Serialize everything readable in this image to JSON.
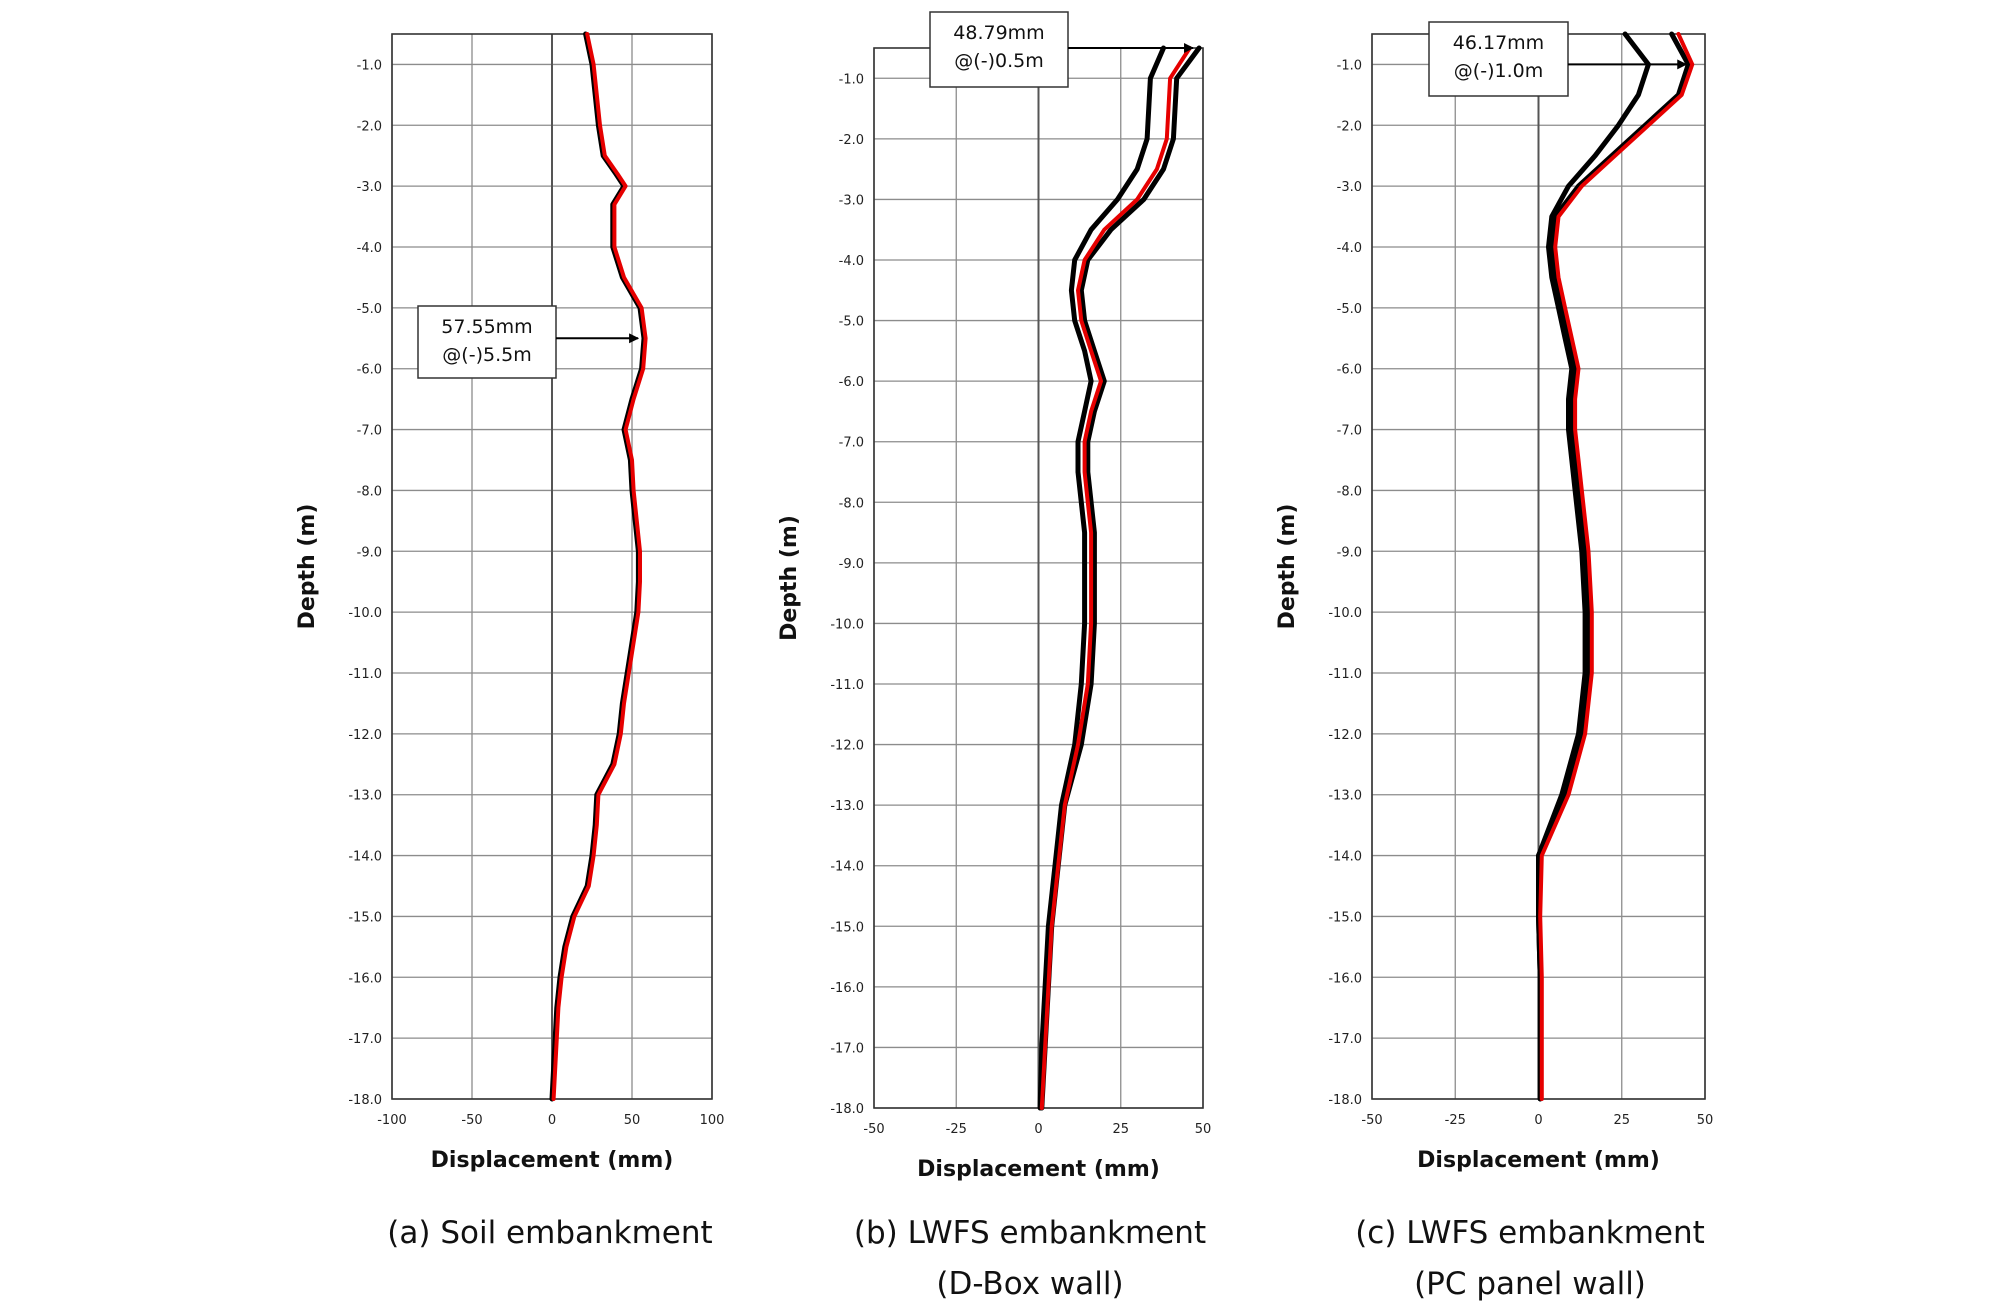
{
  "chart_data": [
    {
      "type": "line",
      "panel": "a",
      "caption": "(a) Soil embankment",
      "xlabel": "Displacement (mm)",
      "ylabel": "Depth (m)",
      "xlim": [
        -100,
        100
      ],
      "ylim": [
        -18.0,
        -0.5
      ],
      "xticks": [
        "-100",
        "-50",
        "0",
        "50",
        "100"
      ],
      "yticks": [
        "-1.0",
        "-2.0",
        "-3.0",
        "-4.0",
        "-5.0",
        "-6.0",
        "-7.0",
        "-8.0",
        "-9.0",
        "-10.0",
        "-11.0",
        "-12.0",
        "-13.0",
        "-14.0",
        "-15.0",
        "-16.0",
        "-17.0",
        "-18.0"
      ],
      "grid": true,
      "annotation": {
        "line1": "57.55mm",
        "line2": "@(-)5.5m",
        "x": 57.55,
        "depth": -5.5
      },
      "series": [
        {
          "color": "#000000",
          "depth": [
            -0.5,
            -1.0,
            -2.0,
            -2.5,
            -2.8,
            -3.0,
            -3.3,
            -4.0,
            -4.5,
            -5.0,
            -5.5,
            -6.0,
            -6.5,
            -7.0,
            -7.5,
            -8.0,
            -8.5,
            -9.0,
            -9.5,
            -10.0,
            -10.5,
            -11.0,
            -11.5,
            -12.0,
            -12.5,
            -13.0,
            -13.5,
            -14.0,
            -14.5,
            -15.0,
            -15.5,
            -16.0,
            -16.5,
            -17.0,
            -17.5,
            -18.0
          ],
          "x": [
            21,
            25,
            29,
            32,
            40,
            45,
            38,
            38,
            44,
            55,
            57.5,
            56,
            50,
            45,
            49,
            50,
            52,
            54,
            54,
            53,
            50,
            47,
            44,
            42,
            38,
            28,
            27,
            25,
            22,
            13,
            8,
            5,
            3,
            2,
            1,
            0
          ]
        },
        {
          "color": "#e60000",
          "depth": [
            -0.5,
            -1.0,
            -2.0,
            -2.5,
            -2.8,
            -3.0,
            -3.3,
            -4.0,
            -4.5,
            -5.0,
            -5.5,
            -6.0,
            -6.5,
            -7.0,
            -7.5,
            -8.0,
            -8.5,
            -9.0,
            -9.5,
            -10.0,
            -10.5,
            -11.0,
            -11.5,
            -12.0,
            -12.5,
            -13.0,
            -13.5,
            -14.0,
            -14.5,
            -15.0,
            -15.5,
            -16.0,
            -16.5,
            -17.0,
            -17.5,
            -18.0
          ],
          "x": [
            22,
            26,
            30,
            33,
            41,
            46,
            39,
            39,
            45,
            56,
            58.5,
            57,
            51,
            46,
            50,
            51,
            53,
            55,
            55,
            54,
            51,
            48,
            45,
            43,
            39,
            29,
            28,
            26,
            23,
            14,
            9,
            6,
            4,
            3,
            2,
            1
          ]
        }
      ]
    },
    {
      "type": "line",
      "panel": "b",
      "caption": "(b) LWFS embankment",
      "caption2": "(D-Box wall)",
      "xlabel": "Displacement (mm)",
      "ylabel": "Depth (m)",
      "xlim": [
        -50,
        50
      ],
      "ylim": [
        -18.0,
        -0.5
      ],
      "xticks": [
        "-50",
        "-25",
        "0",
        "25",
        "50"
      ],
      "yticks": [
        "-1.0",
        "-2.0",
        "-3.0",
        "-4.0",
        "-5.0",
        "-6.0",
        "-7.0",
        "-8.0",
        "-9.0",
        "-10.0",
        "-11.0",
        "-12.0",
        "-13.0",
        "-14.0",
        "-15.0",
        "-16.0",
        "-17.0",
        "-18.0"
      ],
      "grid": true,
      "annotation": {
        "line1": "48.79mm",
        "line2": "@(-)0.5m",
        "x": 48.79,
        "depth": -0.5
      },
      "series": [
        {
          "color": "#000000",
          "depth": [
            -0.5,
            -1.0,
            -2.0,
            -2.5,
            -3.0,
            -3.5,
            -4.0,
            -4.5,
            -5.0,
            -5.5,
            -6.0,
            -6.5,
            -7.0,
            -7.5,
            -8.0,
            -8.5,
            -9.0,
            -9.5,
            -10.0,
            -11.0,
            -12.0,
            -13.0,
            -14.0,
            -15.0,
            -16.0,
            -17.0,
            -18.0
          ],
          "x": [
            48.8,
            42,
            41,
            38,
            32,
            22,
            15,
            13,
            14,
            17,
            20,
            17,
            15,
            15,
            16,
            17,
            17,
            17,
            17,
            16,
            13,
            8,
            6,
            4,
            3,
            2,
            1
          ]
        },
        {
          "color": "#000000",
          "depth": [
            -0.5,
            -1.0,
            -2.0,
            -2.5,
            -3.0,
            -3.5,
            -4.0,
            -4.5,
            -5.0,
            -5.5,
            -6.0,
            -6.5,
            -7.0,
            -7.5,
            -8.0,
            -8.5,
            -9.0,
            -9.5,
            -10.0,
            -11.0,
            -12.0,
            -13.0,
            -14.0,
            -15.0,
            -16.0,
            -17.0,
            -18.0
          ],
          "x": [
            38,
            34,
            33,
            30,
            24,
            16,
            11,
            10,
            11,
            14,
            16,
            14,
            12,
            12,
            13,
            14,
            14,
            14,
            14,
            13,
            11,
            7,
            5,
            3,
            2,
            1,
            0.5
          ]
        },
        {
          "color": "#e60000",
          "depth": [
            -0.5,
            -1.0,
            -2.0,
            -2.5,
            -3.0,
            -3.5,
            -4.0,
            -4.5,
            -5.0,
            -5.5,
            -6.0,
            -6.5,
            -7.0,
            -7.5,
            -8.0,
            -8.5,
            -9.0,
            -9.5,
            -10.0,
            -11.0,
            -12.0,
            -13.0,
            -14.0,
            -15.0,
            -16.0,
            -17.0,
            -18.0
          ],
          "x": [
            46,
            40,
            39,
            36,
            30,
            20,
            14,
            12,
            13,
            16,
            19,
            16,
            14,
            14,
            15,
            16,
            16,
            16,
            16,
            15,
            12,
            8,
            6,
            4,
            3,
            2,
            1
          ]
        }
      ]
    },
    {
      "type": "line",
      "panel": "c",
      "caption": "(c) LWFS embankment",
      "caption2": "(PC panel wall)",
      "xlabel": "Displacement (mm)",
      "ylabel": "Depth (m)",
      "xlim": [
        -50,
        50
      ],
      "ylim": [
        -18.0,
        -0.5
      ],
      "xticks": [
        "-50",
        "-25",
        "0",
        "25",
        "50"
      ],
      "yticks": [
        "-1.0",
        "-2.0",
        "-3.0",
        "-4.0",
        "-5.0",
        "-6.0",
        "-7.0",
        "-8.0",
        "-9.0",
        "-10.0",
        "-11.0",
        "-12.0",
        "-13.0",
        "-14.0",
        "-15.0",
        "-16.0",
        "-17.0",
        "-18.0"
      ],
      "grid": true,
      "annotation": {
        "line1": "46.17mm",
        "line2": "@(-)1.0m",
        "x": 46.17,
        "depth": -1.0
      },
      "series": [
        {
          "color": "#000000",
          "depth": [
            -0.5,
            -1.0,
            -1.5,
            -2.0,
            -2.5,
            -3.0,
            -3.5,
            -4.0,
            -4.5,
            -5.0,
            -5.5,
            -6.0,
            -6.5,
            -7.0,
            -7.5,
            -8.0,
            -9.0,
            -10.0,
            -11.0,
            -12.0,
            -13.0,
            -14.0,
            -15.0,
            -16.0,
            -17.0,
            -18.0
          ],
          "x": [
            40,
            45,
            42,
            32,
            22,
            12,
            5,
            4,
            5,
            7,
            9,
            11,
            10,
            10,
            11,
            12,
            14,
            15,
            15,
            13,
            8,
            0,
            0,
            0.5,
            0.5,
            0.5
          ]
        },
        {
          "color": "#000000",
          "depth": [
            -0.5,
            -1.0,
            -1.5,
            -2.0,
            -2.5,
            -3.0,
            -3.5,
            -4.0,
            -4.5,
            -5.0,
            -5.5,
            -6.0,
            -6.5,
            -7.0,
            -7.5,
            -8.0,
            -9.0,
            -10.0,
            -11.0,
            -12.0,
            -13.0,
            -14.0,
            -15.0,
            -16.0,
            -17.0,
            -18.0
          ],
          "x": [
            26,
            33,
            30,
            24,
            17,
            9,
            4,
            3,
            4,
            6,
            8,
            10,
            9,
            9,
            10,
            11,
            13,
            14,
            14,
            12,
            7,
            0,
            0,
            0.5,
            0.5,
            0.5
          ]
        },
        {
          "color": "#e60000",
          "depth": [
            -0.5,
            -1.0,
            -1.5,
            -2.0,
            -2.5,
            -3.0,
            -3.5,
            -4.0,
            -4.5,
            -5.0,
            -5.5,
            -6.0,
            -6.5,
            -7.0,
            -7.5,
            -8.0,
            -9.0,
            -10.0,
            -11.0,
            -12.0,
            -13.0,
            -14.0,
            -15.0,
            -16.0,
            -17.0,
            -18.0
          ],
          "x": [
            42,
            46.2,
            43,
            33,
            23,
            13,
            6,
            5,
            6,
            8,
            10,
            12,
            11,
            11,
            12,
            13,
            15,
            16,
            16,
            14,
            9,
            1,
            0.5,
            1,
            1,
            1
          ]
        }
      ]
    }
  ]
}
